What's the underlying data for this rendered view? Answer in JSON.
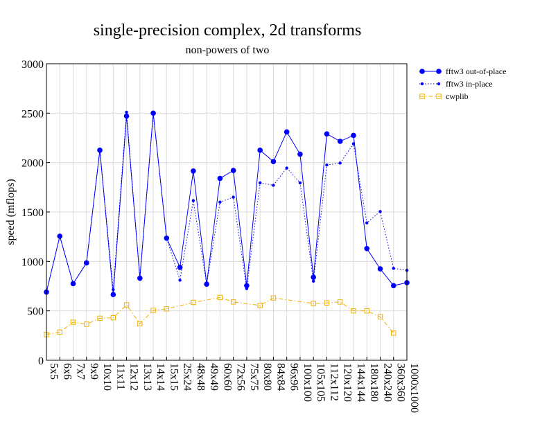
{
  "chart_data": {
    "type": "line",
    "title": "single-precision complex, 2d transforms",
    "subtitle": "non-powers of two",
    "xlabel": "",
    "ylabel": "speed (mflops)",
    "ylim": [
      0,
      3000
    ],
    "yticks": [
      0,
      500,
      1000,
      1500,
      2000,
      2500,
      3000
    ],
    "grid": true,
    "legend_position": "outside-right-top",
    "categories": [
      "5x5",
      "6x6",
      "7x7",
      "9x9",
      "10x10",
      "11x11",
      "12x12",
      "13x13",
      "14x14",
      "15x15",
      "25x24",
      "48x48",
      "49x49",
      "60x60",
      "72x56",
      "75x75",
      "80x80",
      "84x84",
      "96x96",
      "100x100",
      "105x105",
      "112x112",
      "120x120",
      "144x144",
      "180x180",
      "240x240",
      "360x360",
      "1000x1000"
    ],
    "series": [
      {
        "name": "fftw3 out-of-place",
        "color": "#0000ff",
        "line_style": "solid",
        "marker": "circle",
        "values": [
          690,
          1255,
          775,
          985,
          2125,
          665,
          2470,
          830,
          2500,
          1235,
          940,
          1915,
          770,
          1840,
          1920,
          755,
          2125,
          2010,
          2310,
          2085,
          840,
          2290,
          2215,
          2275,
          1130,
          925,
          755,
          785
        ]
      },
      {
        "name": "fftw3 in-place",
        "color": "#0000ff",
        "line_style": "dotted",
        "marker": "small-circle",
        "values": [
          690,
          1255,
          775,
          985,
          2125,
          715,
          2510,
          830,
          2490,
          1235,
          810,
          1615,
          770,
          1600,
          1650,
          725,
          1795,
          1770,
          1945,
          1795,
          800,
          1975,
          1995,
          2190,
          1390,
          1505,
          930,
          910
        ]
      },
      {
        "name": "cwplib",
        "color": "#f0b000",
        "line_style": "dashdot",
        "marker": "square",
        "values": [
          260,
          285,
          385,
          365,
          425,
          430,
          560,
          370,
          505,
          520,
          null,
          585,
          null,
          635,
          590,
          null,
          555,
          630,
          null,
          null,
          575,
          580,
          590,
          500,
          500,
          440,
          275,
          null
        ]
      }
    ]
  }
}
